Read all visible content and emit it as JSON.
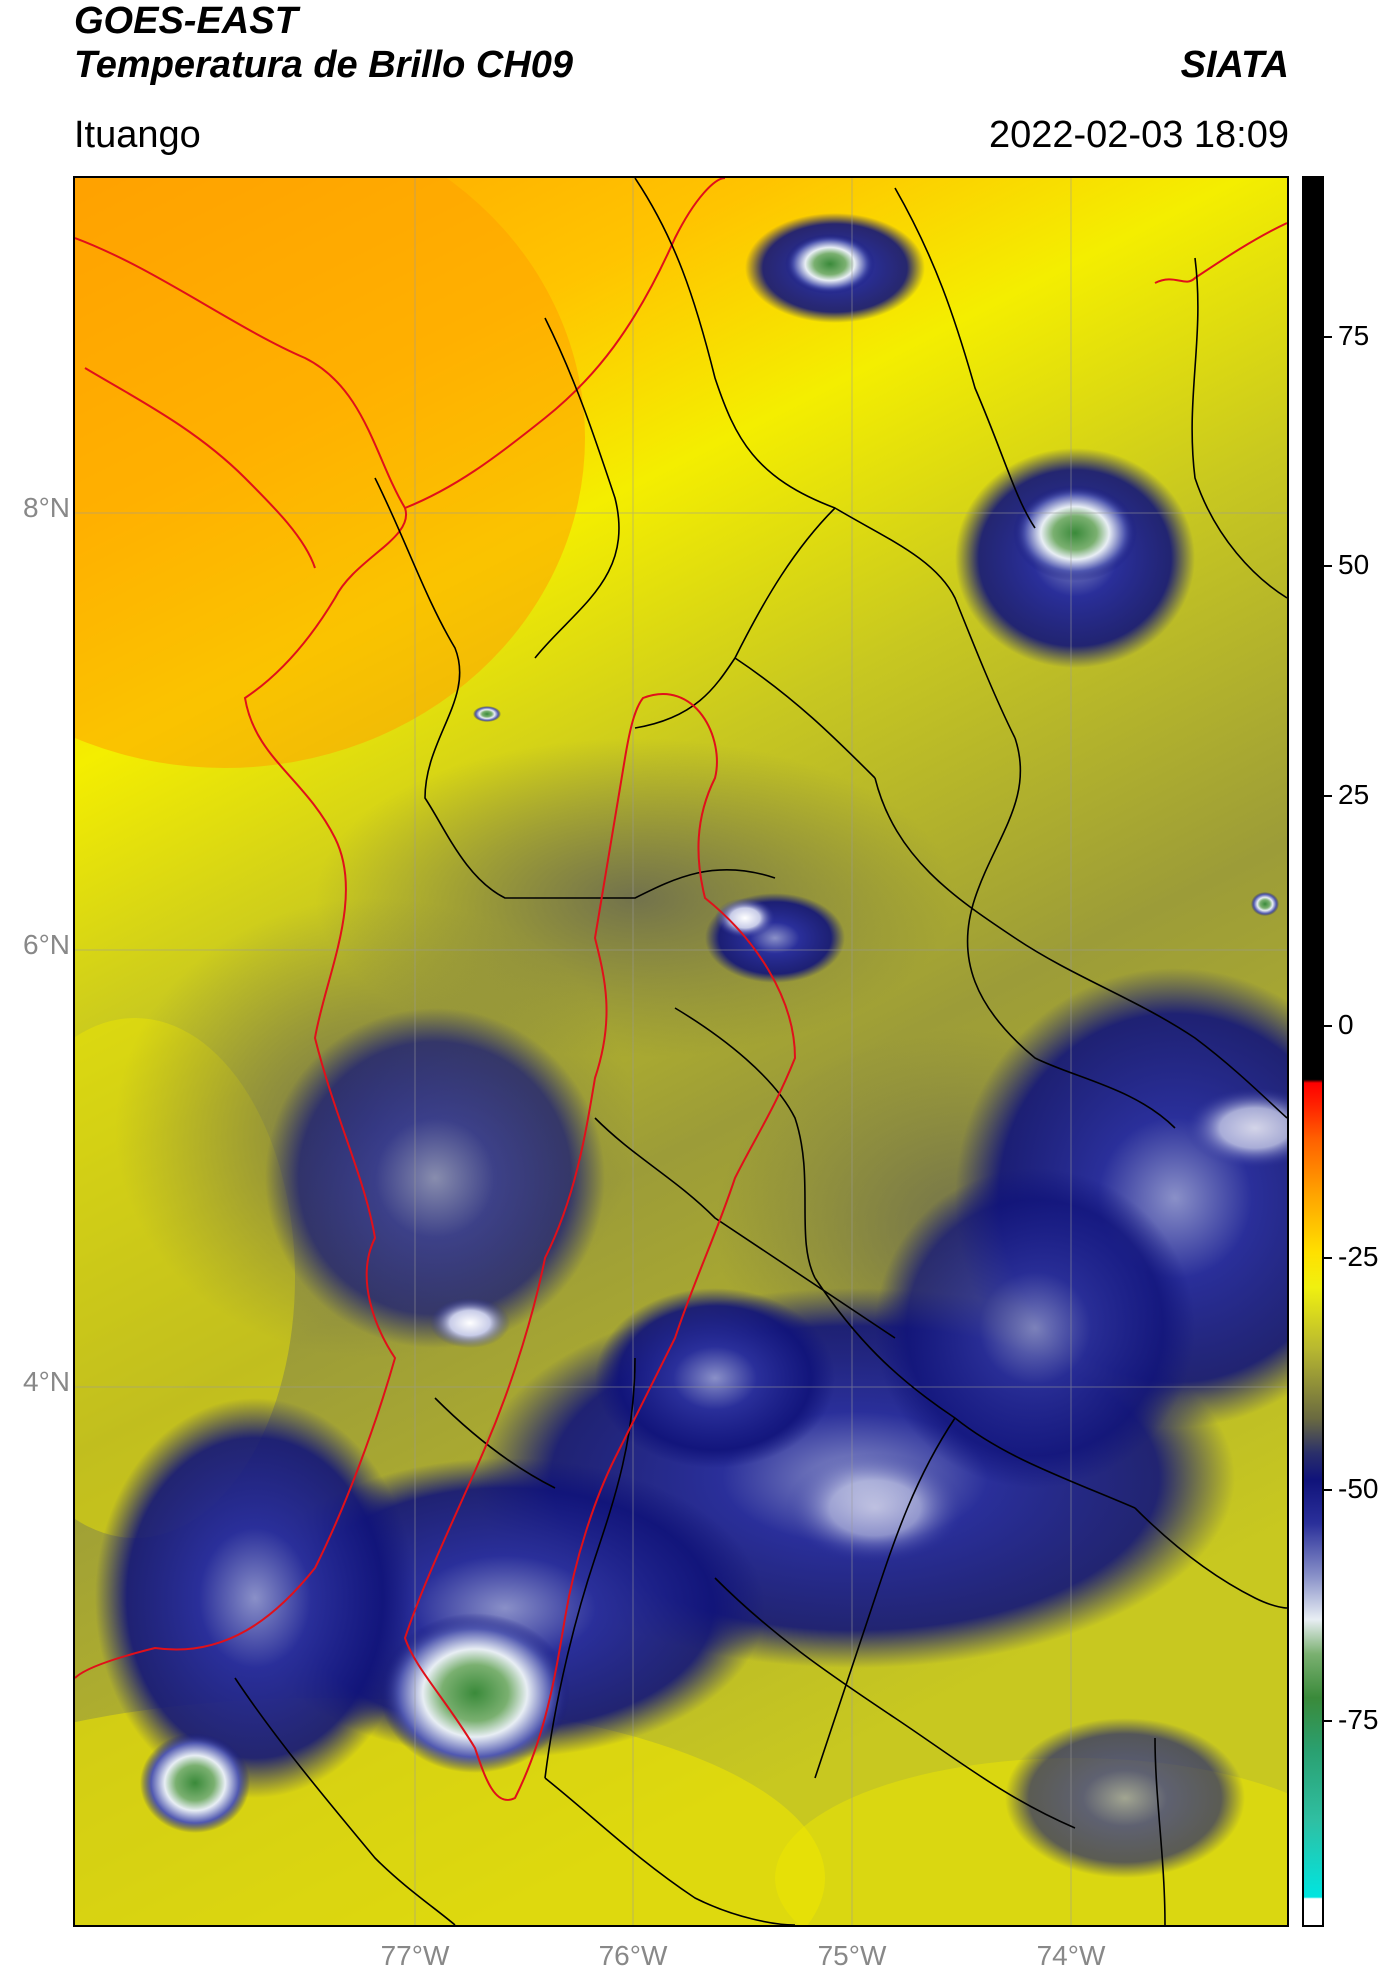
{
  "header": {
    "title_line1": "GOES-EAST",
    "title_line2": "Temperatura de Brillo CH09",
    "org": "SIATA",
    "region": "Ituango",
    "datetime": "2022-02-03 18:09"
  },
  "map": {
    "lat_ticks": [
      "8°N",
      "6°N",
      "4°N"
    ],
    "lon_ticks": [
      "77°W",
      "76°W",
      "75°W",
      "74°W"
    ],
    "colors": {
      "warm": "#ffa300",
      "mild": "#ffe600",
      "cool": "#b8b820",
      "cloud": "#2a2f8a",
      "deep": "#10137a",
      "core": "#e8eef4",
      "peak": "#3a8a3a",
      "borders": "#000000",
      "basin_outline": "#e0101a"
    }
  },
  "colorbar": {
    "ticks": [
      "75",
      "50",
      "25",
      "0",
      "-25",
      "-50",
      "-75"
    ]
  }
}
